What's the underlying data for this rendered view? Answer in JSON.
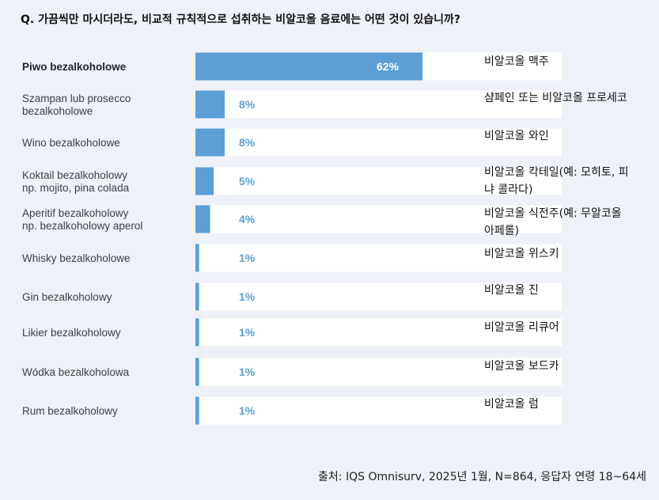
{
  "question": "Q. 가끔씩만 마시더라도, 비교적 규칙적으로 섭취하는 비알코올 음료에는 어떤 것이 있습니까?",
  "source": "출처: IQS Omnisurv, 2025년 1월, N=864, 응답자 연령 18~64세",
  "colors": {
    "bar": "#5b9fd6",
    "track": "#ffffff",
    "pct_inside": "#ffffff",
    "pct_outside": "#5b9fd6",
    "background": "#eef1f8"
  },
  "chart_data": {
    "type": "bar",
    "orientation": "horizontal",
    "xlim": [
      0,
      100
    ],
    "unit": "%",
    "categories": [
      [
        "Piwo bezalkoholowe"
      ],
      [
        "Szampan lub prosecco",
        "bezalkoholowe"
      ],
      [
        "Wino bezalkoholowe"
      ],
      [
        "Koktail bezalkoholowy",
        "np. mojito, pina colada"
      ],
      [
        "Aperitif bezalkoholowy",
        "np. bezalkoholowy aperol"
      ],
      [
        "Whisky bezalkoholowe"
      ],
      [
        "Gin bezalkoholowy"
      ],
      [
        "Likier bezalkoholowy"
      ],
      [
        "Wódka bezalkoholowa"
      ],
      [
        "Rum bezalkoholowy"
      ]
    ],
    "values": [
      62,
      8,
      8,
      5,
      4,
      1,
      1,
      1,
      1,
      1
    ],
    "value_labels": [
      "62%",
      "8%",
      "8%",
      "5%",
      "4%",
      "1%",
      "1%",
      "1%",
      "1%",
      "1%"
    ],
    "highlight_first": true,
    "translations": [
      [
        "비알코올 맥주"
      ],
      [
        "샴페인 또는 비알코올 프로세코"
      ],
      [
        "비알코올 와인"
      ],
      [
        "비알코올 칵테일(예: 모히토, 피",
        "냐 콜라다)"
      ],
      [
        "비알코올 식전주(예: 무알코올",
        "아페롤)"
      ],
      [
        "비알코올 위스키"
      ],
      [
        "비알코올 진"
      ],
      [
        "비알코올 리큐어"
      ],
      [
        "비알코올 보드카"
      ],
      [
        "비알코올 럼"
      ]
    ]
  }
}
